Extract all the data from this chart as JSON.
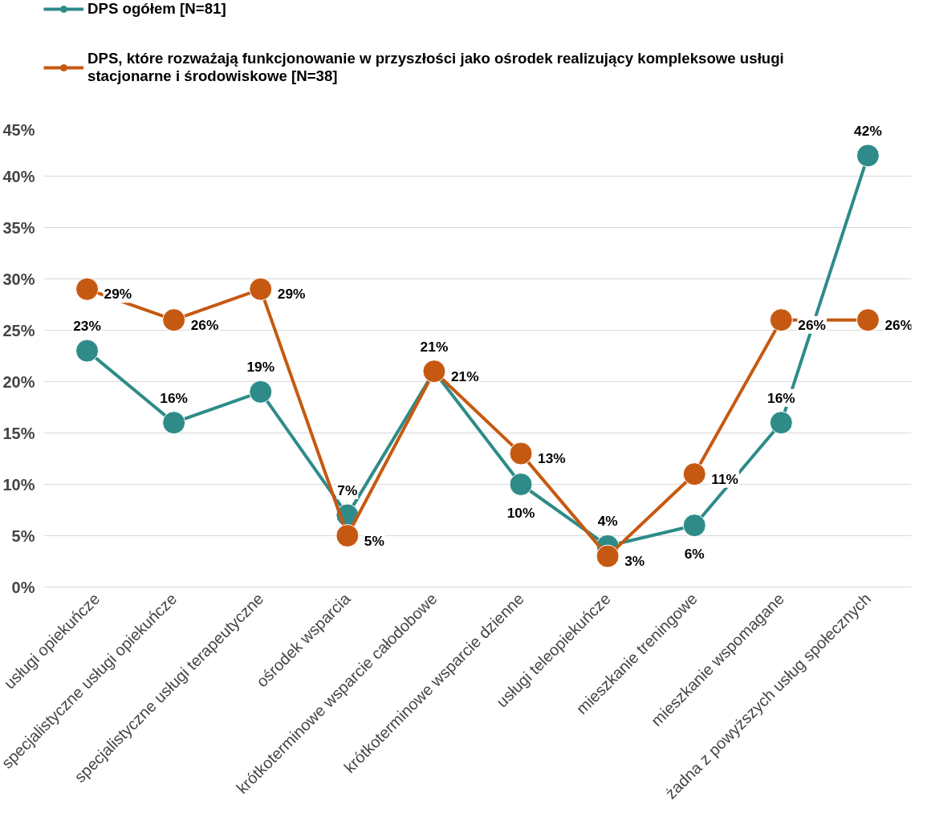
{
  "chart_data": {
    "type": "line",
    "categories": [
      "usługi opiekuńcze",
      "specjalistyczne usługi opiekuńcze",
      "specjalistyczne usługi terapeutyczne",
      "ośrodek wsparcia",
      "krótkoterminowe wsparcie całodobowe",
      "krótkoterminowe wsparcie dzienne",
      "usługi teleopiekuńcze",
      "mieszkanie treningowe",
      "mieszkanie wspomagane",
      "żadna z powyższych usług społecznych"
    ],
    "series": [
      {
        "name": "DPS ogółem [N=81]",
        "color": "#2e8b88",
        "values": [
          23,
          16,
          19,
          7,
          21,
          10,
          4,
          6,
          16,
          42
        ],
        "value_labels": [
          "23%",
          "16%",
          "19%",
          "7%",
          "21%",
          "10%",
          "4%",
          "6%",
          "16%",
          "42%"
        ]
      },
      {
        "name": "DPS, które rozważają funkcjonowanie w przyszłości jako ośrodek realizujący kompleksowe usługi stacjonarne i środowiskowe [N=38]",
        "color": "#c65911",
        "values": [
          29,
          26,
          29,
          5,
          21,
          13,
          3,
          11,
          26,
          26
        ],
        "value_labels": [
          "29%",
          "26%",
          "29%",
          "5%",
          "21%",
          "13%",
          "3%",
          "11%",
          "26%",
          "26%"
        ]
      }
    ],
    "ylim": [
      0,
      45
    ],
    "yticks": [
      {
        "value": 0,
        "label": "0%"
      },
      {
        "value": 5,
        "label": "5%"
      },
      {
        "value": 10,
        "label": "10%"
      },
      {
        "value": 15,
        "label": "15%"
      },
      {
        "value": 20,
        "label": "20%"
      },
      {
        "value": 25,
        "label": "25%"
      },
      {
        "value": 30,
        "label": "30%"
      },
      {
        "value": 35,
        "label": "35%"
      },
      {
        "value": 40,
        "label": "40%"
      },
      {
        "value": 45,
        "label": "45%"
      }
    ],
    "grid": "y",
    "legend": "top",
    "marker": "circle",
    "line_style": "solid"
  }
}
